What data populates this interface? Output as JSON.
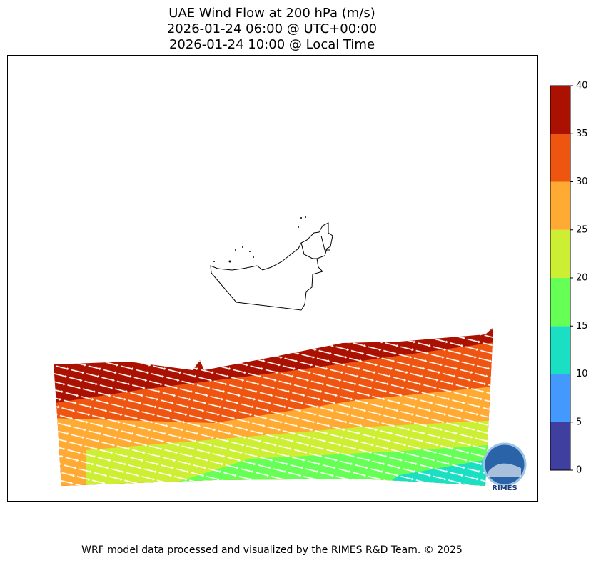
{
  "title": [
    "UAE Wind Flow at 200 hPa (m/s)",
    "2026-01-24 06:00 @ UTC+00:00",
    "2026-01-24 10:00 @ Local Time"
  ],
  "colorbar": {
    "ticks": [
      0,
      5,
      10,
      15,
      20,
      25,
      30,
      35,
      40
    ],
    "colors": [
      "#3f3fa0",
      "#4499ff",
      "#1adfc3",
      "#66ff55",
      "#ccee33",
      "#ffaa33",
      "#ee5511",
      "#aa1100"
    ]
  },
  "logo": "RIMES",
  "footer": "WRF model data processed and visualized by the RIMES R&D Team. © 2025"
}
